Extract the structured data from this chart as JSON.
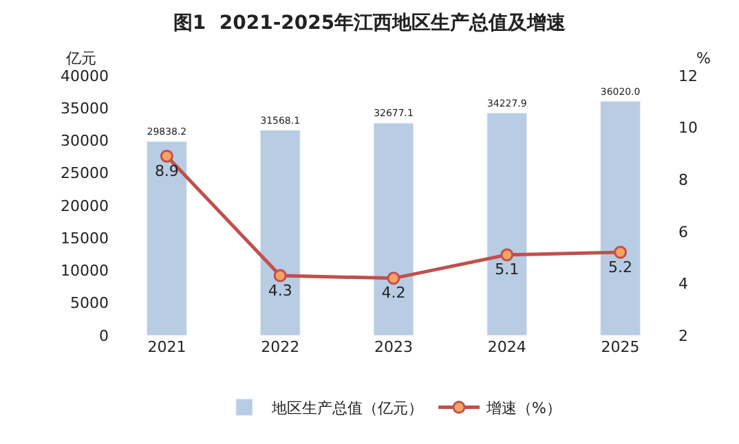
{
  "chart_data": {
    "type": "bar",
    "title": "图1  2021-2025年江西地区生产总值及增速",
    "ylabel": "亿元",
    "y2label": "%",
    "categories": [
      "2021",
      "2022",
      "2023",
      "2024",
      "2025"
    ],
    "series": [
      {
        "name": "地区生产总值（亿元）",
        "color": "#b8cce4",
        "values": [
          29838.2,
          31568.1,
          32677.1,
          34227.9,
          36020.0
        ],
        "value_labels": [
          "29838.2",
          "31568.1",
          "32677.1",
          "34227.9",
          "36020.0"
        ]
      },
      {
        "name": "增速（%）",
        "type": "line",
        "axis": "y2",
        "color": "#c0504d",
        "values": [
          8.9,
          4.3,
          4.2,
          5.1,
          5.2
        ],
        "value_labels": [
          "8.9",
          "4.3",
          "4.2",
          "5.1",
          "5.2"
        ]
      }
    ],
    "ylim": [
      0,
      40000
    ],
    "yticks": [
      0,
      5000,
      10000,
      15000,
      20000,
      25000,
      30000,
      35000,
      40000
    ],
    "y2lim": [
      2,
      12
    ],
    "y2ticks": [
      2,
      4,
      6,
      8,
      10,
      12
    ],
    "grid": false,
    "legend": "bottom",
    "marker": "circle",
    "line_style": "solid"
  }
}
